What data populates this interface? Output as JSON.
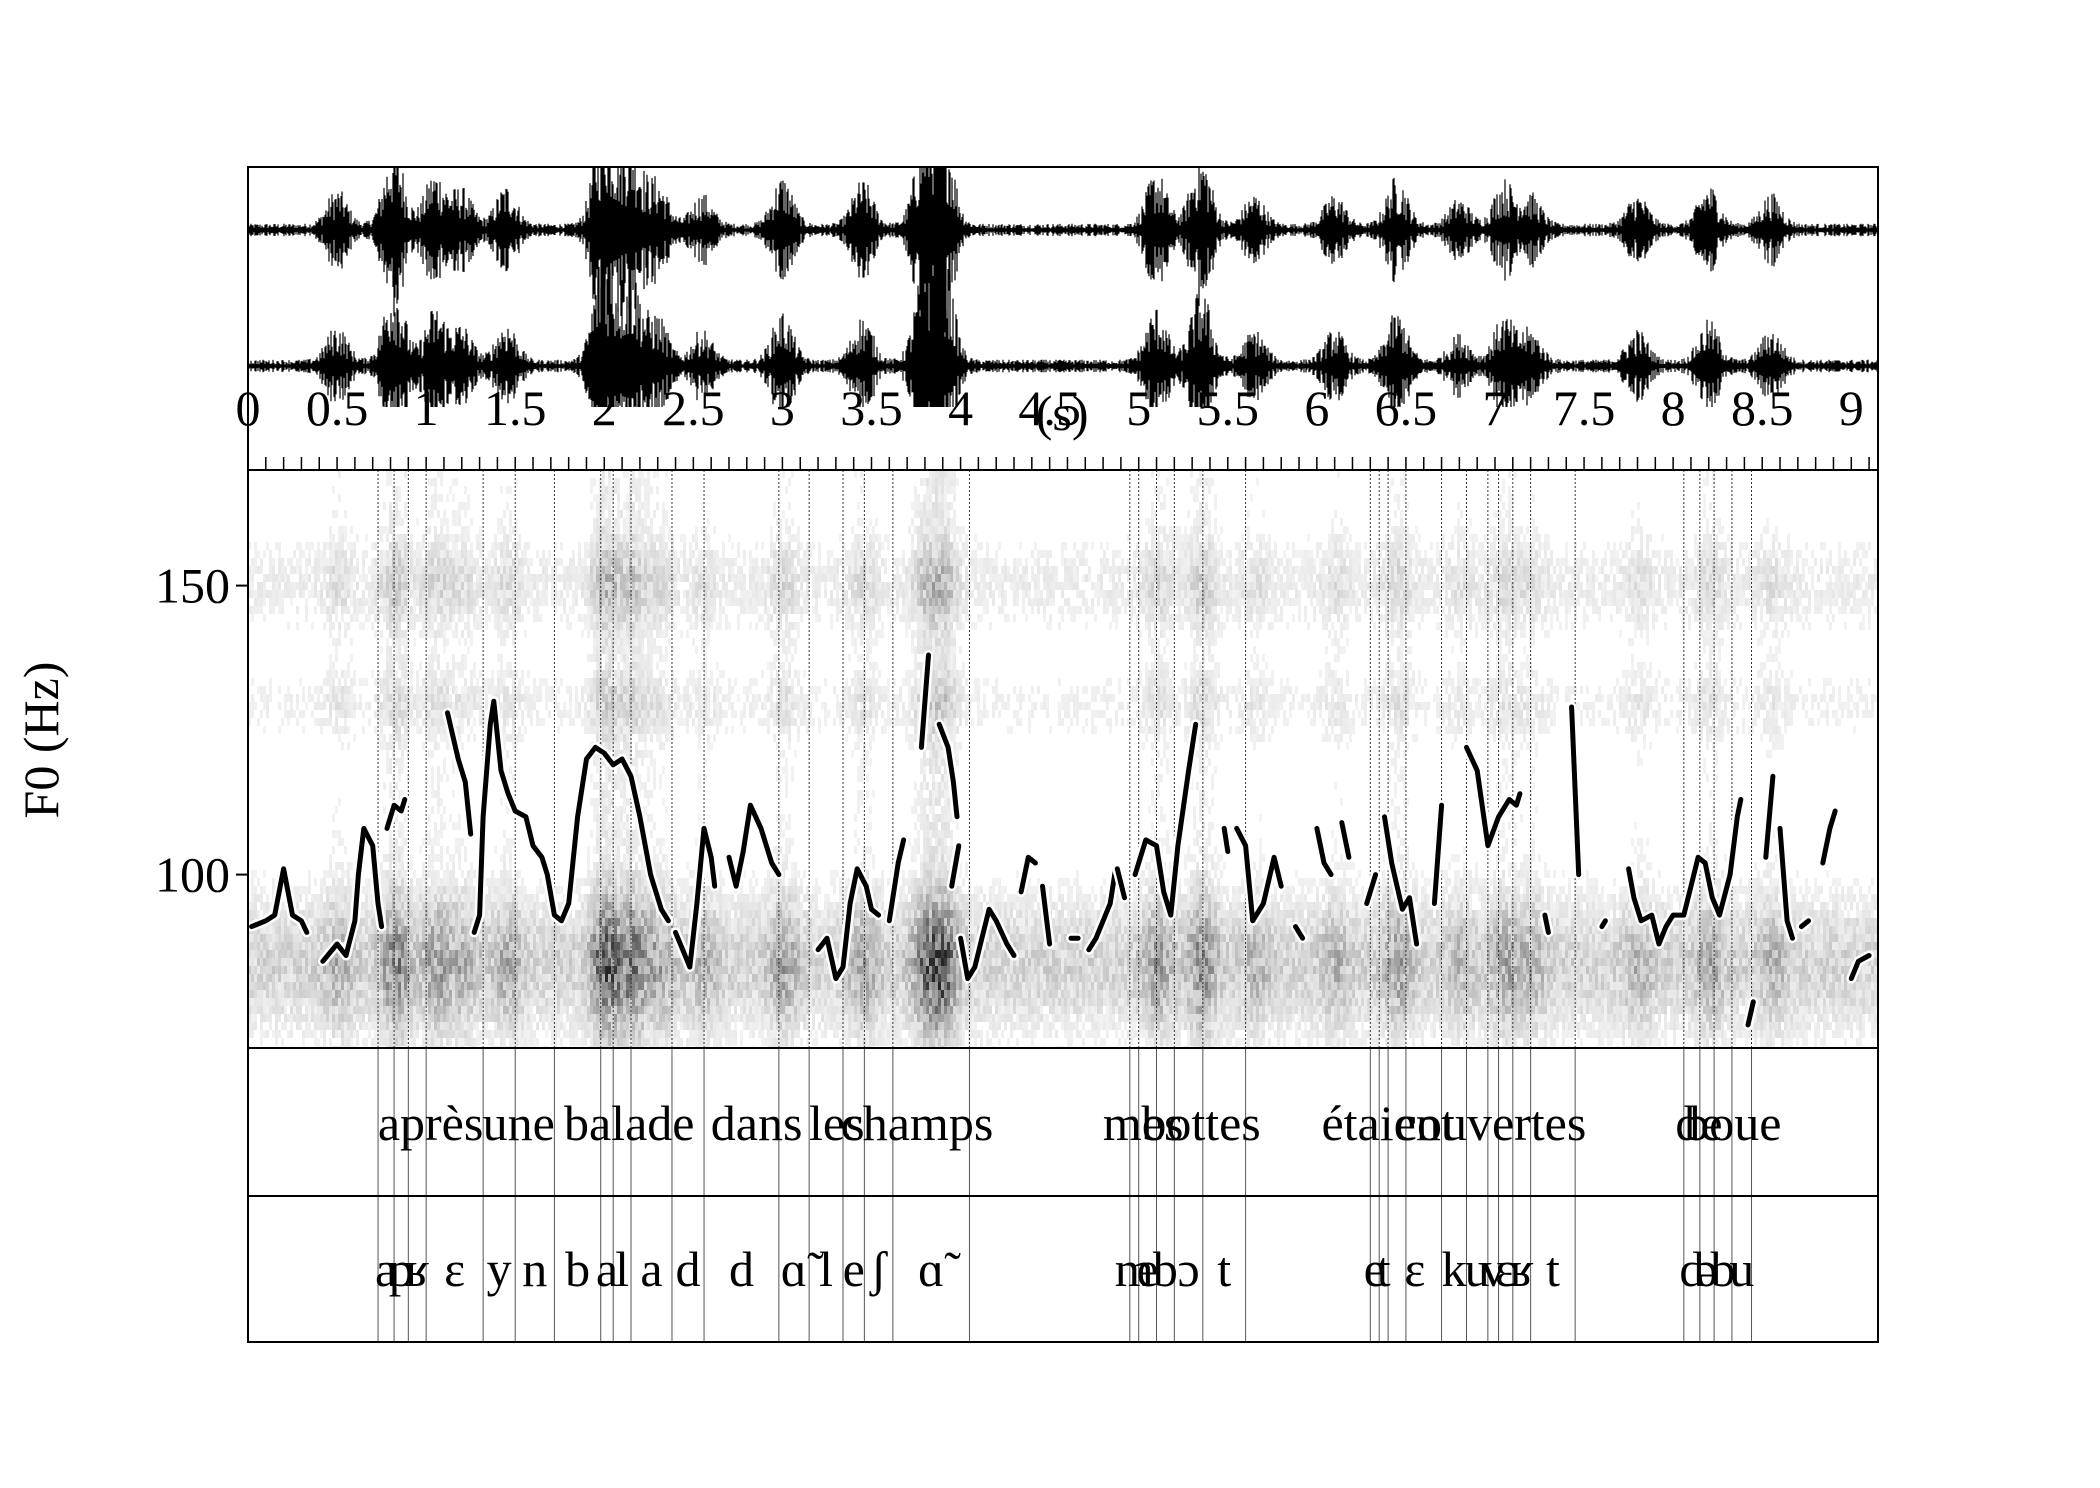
{
  "chart_data": {
    "type": "line",
    "ylabel": "F0 (Hz)",
    "time_unit_label": "(s)",
    "xlim": [
      0,
      9.15
    ],
    "ylim": [
      70,
      170
    ],
    "x_ticks": [
      "0",
      "0.5",
      "1",
      "1.5",
      "2",
      "2.5",
      "3",
      "3.5",
      "4",
      "4.5",
      "5",
      "5.5",
      "6",
      "6.5",
      "7",
      "7.5",
      "8",
      "8.5",
      "9"
    ],
    "y_ticks": [
      {
        "value": 100,
        "label": "100"
      },
      {
        "value": 150,
        "label": "150"
      }
    ],
    "waveform_channels": 2,
    "spectrogram_shown": true,
    "series": [
      {
        "segments": [
          [
            [
              0.02,
              91
            ],
            [
              0.1,
              92
            ],
            [
              0.15,
              93
            ],
            [
              0.2,
              101
            ],
            [
              0.25,
              93
            ],
            [
              0.3,
              92
            ],
            [
              0.33,
              90
            ]
          ],
          [
            [
              0.42,
              85
            ],
            [
              0.5,
              88
            ],
            [
              0.55,
              86
            ],
            [
              0.6,
              92
            ],
            [
              0.62,
              100
            ],
            [
              0.65,
              108
            ],
            [
              0.7,
              105
            ],
            [
              0.73,
              95
            ],
            [
              0.75,
              91
            ]
          ],
          [
            [
              0.78,
              108
            ],
            [
              0.82,
              112
            ],
            [
              0.86,
              111
            ],
            [
              0.88,
              113
            ]
          ],
          [
            [
              1.12,
              128
            ],
            [
              1.18,
              120
            ],
            [
              1.22,
              116
            ],
            [
              1.25,
              107
            ]
          ],
          [
            [
              1.27,
              90
            ],
            [
              1.3,
              93
            ],
            [
              1.32,
              110
            ],
            [
              1.36,
              126
            ],
            [
              1.38,
              130
            ],
            [
              1.42,
              118
            ],
            [
              1.46,
              114
            ],
            [
              1.5,
              111
            ],
            [
              1.56,
              110
            ],
            [
              1.6,
              105
            ],
            [
              1.65,
              103
            ],
            [
              1.68,
              100
            ],
            [
              1.72,
              93
            ],
            [
              1.76,
              92
            ],
            [
              1.8,
              95
            ],
            [
              1.85,
              110
            ],
            [
              1.9,
              120
            ],
            [
              1.95,
              122
            ],
            [
              2,
              121
            ],
            [
              2.05,
              119
            ],
            [
              2.1,
              120
            ],
            [
              2.15,
              117
            ],
            [
              2.2,
              110
            ],
            [
              2.26,
              100
            ],
            [
              2.32,
              94
            ],
            [
              2.36,
              92
            ]
          ],
          [
            [
              2.4,
              90
            ],
            [
              2.44,
              87
            ],
            [
              2.48,
              84
            ],
            [
              2.52,
              95
            ],
            [
              2.56,
              108
            ],
            [
              2.6,
              103
            ],
            [
              2.62,
              98
            ]
          ],
          [
            [
              2.7,
              103
            ],
            [
              2.74,
              98
            ],
            [
              2.78,
              104
            ],
            [
              2.82,
              112
            ],
            [
              2.88,
              108
            ],
            [
              2.94,
              102
            ],
            [
              2.98,
              100
            ]
          ],
          [
            [
              3.2,
              87
            ],
            [
              3.25,
              89
            ],
            [
              3.3,
              82
            ],
            [
              3.34,
              84
            ],
            [
              3.38,
              95
            ],
            [
              3.42,
              101
            ],
            [
              3.47,
              98
            ],
            [
              3.5,
              94
            ],
            [
              3.54,
              93
            ]
          ],
          [
            [
              3.6,
              92
            ],
            [
              3.65,
              102
            ],
            [
              3.68,
              106
            ]
          ],
          [
            [
              3.78,
              122
            ],
            [
              3.82,
              138
            ]
          ],
          [
            [
              3.88,
              126
            ],
            [
              3.93,
              122
            ],
            [
              3.96,
              116
            ],
            [
              3.98,
              110
            ]
          ],
          [
            [
              3.99,
              105
            ],
            [
              3.95,
              98
            ]
          ],
          [
            [
              4.0,
              89
            ],
            [
              4.04,
              82
            ],
            [
              4.08,
              84
            ],
            [
              4.12,
              89
            ],
            [
              4.16,
              94
            ],
            [
              4.2,
              92
            ],
            [
              4.26,
              88
            ],
            [
              4.3,
              86
            ]
          ],
          [
            [
              4.34,
              97
            ],
            [
              4.38,
              103
            ],
            [
              4.42,
              102
            ]
          ],
          [
            [
              4.46,
              98
            ],
            [
              4.5,
              88
            ]
          ],
          [
            [
              4.62,
              89
            ],
            [
              4.66,
              89
            ]
          ],
          [
            [
              4.72,
              87
            ],
            [
              4.76,
              89
            ],
            [
              4.8,
              92
            ],
            [
              4.84,
              95
            ],
            [
              4.87,
              101
            ]
          ],
          [
            [
              4.88,
              101
            ],
            [
              4.92,
              96
            ]
          ],
          [
            [
              4.98,
              100
            ],
            [
              5.04,
              106
            ],
            [
              5.1,
              105
            ],
            [
              5.14,
              97
            ],
            [
              5.18,
              93
            ],
            [
              5.22,
              105
            ],
            [
              5.28,
              118
            ],
            [
              5.32,
              126
            ]
          ],
          [
            [
              5.48,
              108
            ],
            [
              5.5,
              104
            ]
          ],
          [
            [
              5.55,
              108
            ],
            [
              5.6,
              105
            ],
            [
              5.64,
              92
            ],
            [
              5.7,
              95
            ],
            [
              5.76,
              103
            ],
            [
              5.8,
              98
            ]
          ],
          [
            [
              5.88,
              91
            ],
            [
              5.92,
              89
            ]
          ],
          [
            [
              6.0,
              108
            ],
            [
              6.04,
              102
            ],
            [
              6.08,
              100
            ]
          ],
          [
            [
              6.14,
              109
            ],
            [
              6.18,
              103
            ]
          ],
          [
            [
              6.28,
              95
            ],
            [
              6.33,
              100
            ]
          ],
          [
            [
              6.38,
              110
            ],
            [
              6.42,
              102
            ],
            [
              6.48,
              94
            ],
            [
              6.52,
              96
            ],
            [
              6.56,
              88
            ]
          ],
          [
            [
              6.66,
              95
            ],
            [
              6.7,
              112
            ]
          ],
          [
            [
              6.84,
              122
            ],
            [
              6.9,
              118
            ],
            [
              6.96,
              105
            ],
            [
              7.02,
              110
            ],
            [
              7.08,
              113
            ],
            [
              7.12,
              112
            ],
            [
              7.14,
              114
            ]
          ],
          [
            [
              7.28,
              93
            ],
            [
              7.3,
              90
            ]
          ],
          [
            [
              7.43,
              129
            ],
            [
              7.47,
              100
            ]
          ],
          [
            [
              7.6,
              91
            ],
            [
              7.62,
              92
            ]
          ],
          [
            [
              7.75,
              101
            ],
            [
              7.78,
              96
            ],
            [
              7.82,
              92
            ],
            [
              7.88,
              93
            ],
            [
              7.92,
              88
            ],
            [
              7.96,
              91
            ],
            [
              8.0,
              93
            ],
            [
              8.06,
              93
            ],
            [
              8.1,
              98
            ],
            [
              8.14,
              103
            ],
            [
              8.18,
              102
            ],
            [
              8.22,
              96
            ],
            [
              8.26,
              93
            ],
            [
              8.32,
              100
            ],
            [
              8.36,
              110
            ],
            [
              8.38,
              113
            ]
          ],
          [
            [
              8.42,
              74
            ],
            [
              8.45,
              78
            ]
          ],
          [
            [
              8.52,
              103
            ],
            [
              8.56,
              117
            ]
          ],
          [
            [
              8.6,
              108
            ],
            [
              8.64,
              92
            ],
            [
              8.67,
              89
            ]
          ],
          [
            [
              8.72,
              91
            ],
            [
              8.76,
              92
            ]
          ],
          [
            [
              8.84,
              102
            ],
            [
              8.88,
              108
            ],
            [
              8.91,
              111
            ]
          ],
          [
            [
              9.0,
              82
            ],
            [
              9.04,
              85
            ],
            [
              9.1,
              86
            ]
          ]
        ]
      }
    ],
    "word_tier": [
      {
        "text": "après",
        "start": 0.73,
        "end": 1.32
      },
      {
        "text": "une",
        "start": 1.32,
        "end": 1.72
      },
      {
        "text": "balade",
        "start": 1.72,
        "end": 2.56
      },
      {
        "text": "dans",
        "start": 2.56,
        "end": 3.15
      },
      {
        "text": "les",
        "start": 3.15,
        "end": 3.46
      },
      {
        "text": "champs",
        "start": 3.46,
        "end": 4.05
      },
      {
        "text": "mes",
        "start": 4.95,
        "end": 5.1
      },
      {
        "text": "bottes",
        "start": 5.1,
        "end": 5.6
      },
      {
        "text": "étaient",
        "start": 6.3,
        "end": 6.5
      },
      {
        "text": "couvertes",
        "start": 6.5,
        "end": 7.45
      },
      {
        "text": "de",
        "start": 8.06,
        "end": 8.23
      },
      {
        "text": "boue",
        "start": 8.23,
        "end": 8.44
      }
    ],
    "phone_tier": [
      {
        "text": "a",
        "start": 0.73,
        "end": 0.82
      },
      {
        "text": "p",
        "start": 0.82,
        "end": 0.9
      },
      {
        "text": "ʁ",
        "start": 0.9,
        "end": 1.0
      },
      {
        "text": "ɛ",
        "start": 1.0,
        "end": 1.32
      },
      {
        "text": "y",
        "start": 1.32,
        "end": 1.5
      },
      {
        "text": "n",
        "start": 1.5,
        "end": 1.72
      },
      {
        "text": "b",
        "start": 1.72,
        "end": 1.98
      },
      {
        "text": "a",
        "start": 1.98,
        "end": 2.05
      },
      {
        "text": "l",
        "start": 2.05,
        "end": 2.15
      },
      {
        "text": "a",
        "start": 2.15,
        "end": 2.38
      },
      {
        "text": "d",
        "start": 2.38,
        "end": 2.56
      },
      {
        "text": "d",
        "start": 2.56,
        "end": 2.98
      },
      {
        "text": "ɑ̃",
        "start": 2.98,
        "end": 3.15
      },
      {
        "text": "l",
        "start": 3.15,
        "end": 3.34
      },
      {
        "text": "e",
        "start": 3.34,
        "end": 3.46
      },
      {
        "text": "ʃ",
        "start": 3.46,
        "end": 3.62
      },
      {
        "text": "ɑ̃",
        "start": 3.62,
        "end": 4.05
      },
      {
        "text": "m",
        "start": 4.95,
        "end": 5.0
      },
      {
        "text": "e",
        "start": 5.0,
        "end": 5.1
      },
      {
        "text": "b",
        "start": 5.1,
        "end": 5.2
      },
      {
        "text": "ɔ",
        "start": 5.2,
        "end": 5.36
      },
      {
        "text": "t",
        "start": 5.36,
        "end": 5.6
      },
      {
        "text": "e",
        "start": 6.3,
        "end": 6.35
      },
      {
        "text": "t",
        "start": 6.35,
        "end": 6.4
      },
      {
        "text": "ɛ",
        "start": 6.4,
        "end": 6.7
      },
      {
        "text": "k",
        "start": 6.7,
        "end": 6.84
      },
      {
        "text": "u",
        "start": 6.84,
        "end": 6.96
      },
      {
        "text": "v",
        "start": 6.96,
        "end": 7.02
      },
      {
        "text": "ɛ",
        "start": 7.02,
        "end": 7.1
      },
      {
        "text": "ʁ",
        "start": 7.1,
        "end": 7.2
      },
      {
        "text": "t",
        "start": 7.2,
        "end": 7.45
      },
      {
        "text": "d",
        "start": 8.06,
        "end": 8.15
      },
      {
        "text": "ə",
        "start": 8.15,
        "end": 8.23
      },
      {
        "text": "b",
        "start": 8.23,
        "end": 8.33
      },
      {
        "text": "u",
        "start": 8.33,
        "end": 8.44
      }
    ]
  }
}
